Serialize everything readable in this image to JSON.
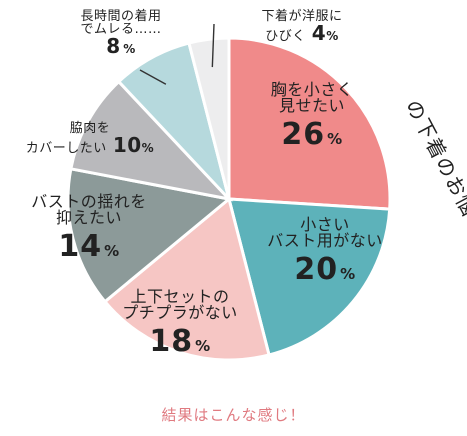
{
  "chart_data": {
    "type": "pie",
    "side_title": "の下着のお悩みは？",
    "slices": [
      {
        "label_lines": [
          "胸を小さく",
          "見せたい"
        ],
        "value": 26,
        "unit": "%",
        "color": "#f08a8a"
      },
      {
        "label_lines": [
          "小さい",
          "バスト用がない"
        ],
        "value": 20,
        "unit": "%",
        "color": "#5db2ba"
      },
      {
        "label_lines": [
          "上下セットの",
          "プチプラがない"
        ],
        "value": 18,
        "unit": "%",
        "color": "#f6c6c4"
      },
      {
        "label_lines": [
          "バストの揺れを",
          "抑えたい"
        ],
        "value": 14,
        "unit": "%",
        "color": "#8c9a99"
      },
      {
        "label_lines": [
          "脇肉を",
          "カバーしたい"
        ],
        "value": 10,
        "unit": "%",
        "color": "#b9b9bc"
      },
      {
        "label_lines": [
          "長時間の着用",
          "でムレる……"
        ],
        "value": 8,
        "unit": "%",
        "color": "#b6d9dd"
      },
      {
        "label_lines": [
          "下着が洋服に",
          "ひびく"
        ],
        "value": 4,
        "unit": "%",
        "color": "#ededee"
      }
    ]
  },
  "caption": "結果はこんな感じ！",
  "colors": {
    "outline": "#ffffff",
    "leader": "#333333",
    "caption": "#e07a80"
  }
}
